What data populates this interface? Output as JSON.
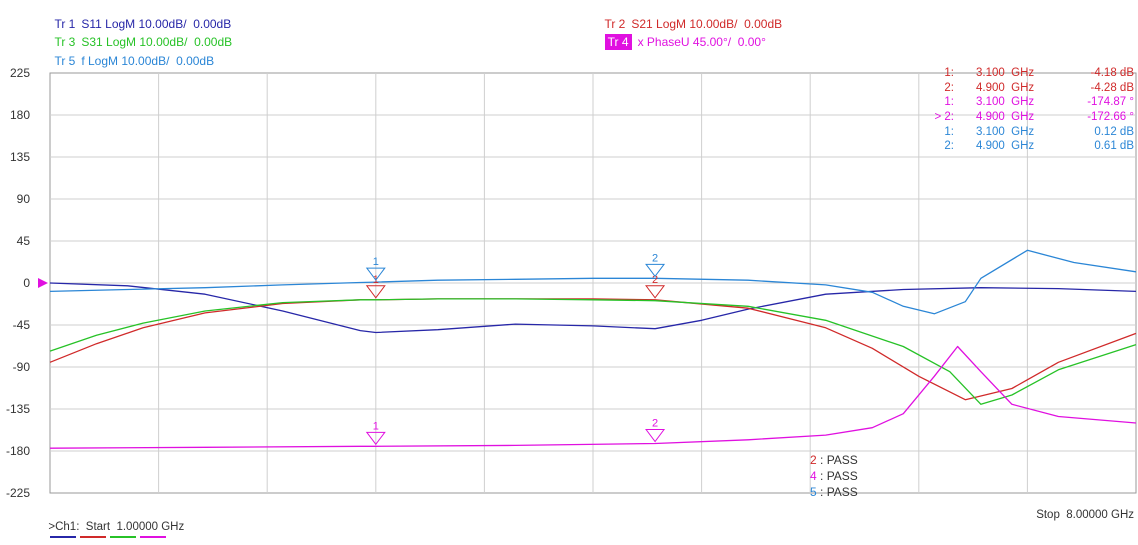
{
  "traces": {
    "tr1": {
      "id": "Tr 1",
      "text": "S11 LogM 10.00dB/  0.00dB",
      "color": "#2727a8"
    },
    "tr2": {
      "id": "Tr 2",
      "text": "S21 LogM 10.00dB/  0.00dB",
      "color": "#d02a2a"
    },
    "tr3": {
      "id": "Tr 3",
      "text": "S31 LogM 10.00dB/  0.00dB",
      "color": "#27c227"
    },
    "tr4": {
      "id": "Tr 4",
      "text": "x PhaseU 45.00°/  0.00°",
      "color": "#e010e0"
    },
    "tr5": {
      "id": "Tr 5",
      "text": "f LogM 10.00dB/  0.00dB",
      "color": "#2b86d6"
    }
  },
  "markers": [
    {
      "id": "1:",
      "freq": "3.100  GHz",
      "value": "-4.18 dB",
      "color": "#d02a2a"
    },
    {
      "id": "2:",
      "freq": "4.900  GHz",
      "value": "-4.28 dB",
      "color": "#d02a2a"
    },
    {
      "id": "1:",
      "freq": "3.100  GHz",
      "value": "-174.87 °",
      "color": "#e010e0"
    },
    {
      "id": "> 2:",
      "freq": "4.900  GHz",
      "value": "-172.66 °",
      "color": "#e010e0"
    },
    {
      "id": "1:",
      "freq": "3.100  GHz",
      "value": "0.12 dB",
      "color": "#2b86d6"
    },
    {
      "id": "2:",
      "freq": "4.900  GHz",
      "value": "0.61 dB",
      "color": "#2b86d6"
    }
  ],
  "pass": [
    {
      "num": "2",
      "text": " : PASS",
      "color": "#d02a2a"
    },
    {
      "num": "4",
      "text": " : PASS",
      "color": "#e010e0"
    },
    {
      "num": "5",
      "text": " : PASS",
      "color": "#2b86d6"
    }
  ],
  "footer": {
    "start": ">Ch1:  Start  1.00000 GHz",
    "stop": "Stop  8.00000 GHz"
  },
  "chart_data": {
    "type": "line",
    "x_unit": "GHz",
    "xlim": [
      1.0,
      8.0
    ],
    "ylim": [
      -225,
      225
    ],
    "yticks": [
      225,
      180,
      135,
      90,
      45,
      0,
      -45,
      -90,
      -135,
      -180,
      -225
    ],
    "grid": true,
    "series": [
      {
        "name": "Tr 1 S11",
        "color": "#2727a8",
        "x": [
          1.0,
          1.5,
          2.0,
          2.5,
          3.0,
          3.1,
          3.5,
          4.0,
          4.5,
          4.9,
          5.2,
          5.5,
          6.0,
          6.5,
          7.0,
          7.5,
          8.0
        ],
        "y": [
          0,
          -3,
          -12,
          -30,
          -51,
          -53,
          -50,
          -44,
          -46,
          -49,
          -40,
          -28,
          -12,
          -7,
          -5,
          -6,
          -9
        ]
      },
      {
        "name": "Tr 2 S21",
        "color": "#d02a2a",
        "x": [
          1.0,
          1.3,
          1.6,
          2.0,
          2.5,
          3.0,
          3.1,
          3.5,
          4.0,
          4.5,
          4.9,
          5.5,
          6.0,
          6.3,
          6.6,
          6.9,
          7.2,
          7.5,
          8.0
        ],
        "y": [
          -85,
          -65,
          -48,
          -32,
          -22,
          -18,
          -18,
          -17,
          -17,
          -17,
          -18,
          -27,
          -48,
          -70,
          -100,
          -125,
          -113,
          -85,
          -54
        ]
      },
      {
        "name": "Tr 3 S31",
        "color": "#27c227",
        "x": [
          1.0,
          1.3,
          1.6,
          2.0,
          2.5,
          3.0,
          3.1,
          3.5,
          4.0,
          4.5,
          4.9,
          5.5,
          6.0,
          6.5,
          6.8,
          7.0,
          7.2,
          7.5,
          8.0
        ],
        "y": [
          -73,
          -56,
          -43,
          -30,
          -21,
          -18,
          -18,
          -17,
          -17,
          -18,
          -19,
          -25,
          -40,
          -68,
          -95,
          -130,
          -120,
          -93,
          -66
        ]
      },
      {
        "name": "Tr 4 PhaseU",
        "color": "#e010e0",
        "x": [
          1.0,
          2.0,
          3.0,
          3.1,
          4.0,
          4.9,
          5.5,
          6.0,
          6.3,
          6.5,
          6.7,
          6.85,
          7.0,
          7.2,
          7.5,
          8.0
        ],
        "y": [
          -177,
          -176,
          -175,
          -175,
          -174,
          -172,
          -168,
          -163,
          -155,
          -140,
          -100,
          -68,
          -95,
          -130,
          -143,
          -150
        ]
      },
      {
        "name": "Tr 5 f",
        "color": "#2b86d6",
        "x": [
          1.0,
          1.5,
          2.0,
          2.5,
          3.0,
          3.1,
          3.5,
          4.0,
          4.5,
          4.9,
          5.5,
          6.0,
          6.3,
          6.5,
          6.7,
          6.9,
          7.0,
          7.3,
          7.6,
          8.0
        ],
        "y": [
          -9,
          -7,
          -5,
          -2,
          0.5,
          1,
          3,
          4,
          5,
          5,
          3,
          -2,
          -10,
          -25,
          -33,
          -20,
          5,
          35,
          22,
          12
        ]
      }
    ],
    "marker_points": [
      {
        "trace": "Tr 2 S21",
        "label": "1",
        "x": 3.1,
        "y": -18
      },
      {
        "trace": "Tr 2 S21",
        "label": "2",
        "x": 4.9,
        "y": -18
      },
      {
        "trace": "Tr 4 PhaseU",
        "label": "1",
        "x": 3.1,
        "y": -175
      },
      {
        "trace": "Tr 4 PhaseU",
        "label": "2",
        "x": 4.9,
        "y": -172
      },
      {
        "trace": "Tr 5 f",
        "label": "1",
        "x": 3.1,
        "y": 1
      },
      {
        "trace": "Tr 5 f",
        "label": "2",
        "x": 4.9,
        "y": 5
      }
    ],
    "reference_level": 0
  }
}
